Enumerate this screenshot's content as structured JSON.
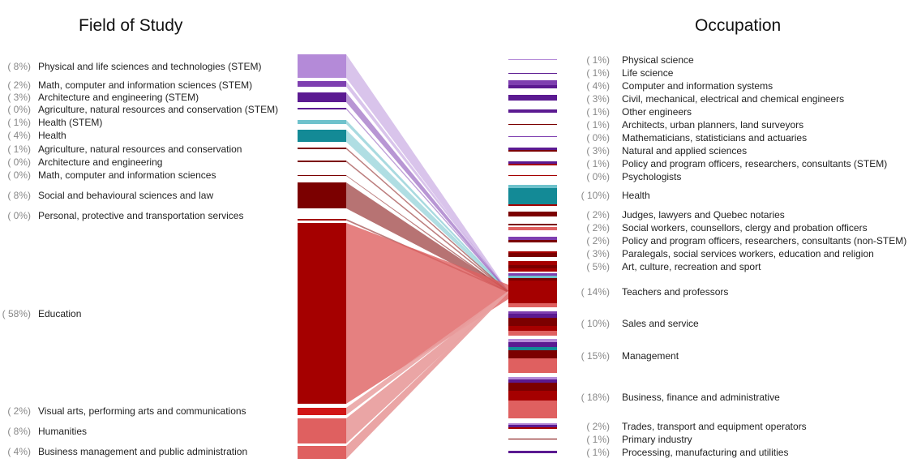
{
  "titles": {
    "left": "Field of Study",
    "right": "Occupation"
  },
  "colors": {
    "stem_purple": "#b48ad8",
    "stem_dark": "#7e3fb0",
    "deep_purple": "#5b1a91",
    "teal": "#138a96",
    "teal_light": "#6fc2cc",
    "dark_red": "#7b0000",
    "red": "#a50000",
    "bright_red": "#d11616",
    "coral": "#df6060",
    "pink_flow": "#e9a0a0"
  },
  "left_items": [
    {
      "pct": "( 8%)",
      "label": "Physical and life sciences and technologies (STEM)"
    },
    {
      "pct": "( 2%)",
      "label": "Math, computer and information sciences (STEM)"
    },
    {
      "pct": "( 3%)",
      "label": "Architecture and engineering (STEM)"
    },
    {
      "pct": "( 0%)",
      "label": "Agriculture, natural resources and conservation (STEM)"
    },
    {
      "pct": "( 1%)",
      "label": "Health (STEM)"
    },
    {
      "pct": "( 4%)",
      "label": "Health"
    },
    {
      "pct": "( 1%)",
      "label": "Agriculture, natural resources and conservation"
    },
    {
      "pct": "( 0%)",
      "label": "Architecture and engineering"
    },
    {
      "pct": "( 0%)",
      "label": "Math, computer and information sciences"
    },
    {
      "pct": "( 8%)",
      "label": "Social and behavioural sciences and law"
    },
    {
      "pct": "( 0%)",
      "label": "Personal, protective and transportation services"
    },
    {
      "pct": "( 58%)",
      "label": "Education"
    },
    {
      "pct": "( 2%)",
      "label": "Visual arts, performing arts and communications"
    },
    {
      "pct": "( 8%)",
      "label": "Humanities"
    },
    {
      "pct": "( 4%)",
      "label": "Business management and public administration"
    }
  ],
  "right_items": [
    {
      "pct": "( 1%)",
      "label": "Physical science"
    },
    {
      "pct": "( 1%)",
      "label": "Life science"
    },
    {
      "pct": "( 4%)",
      "label": "Computer and information systems"
    },
    {
      "pct": "( 3%)",
      "label": "Civil, mechanical, electrical and chemical engineers"
    },
    {
      "pct": "( 1%)",
      "label": "Other engineers"
    },
    {
      "pct": "( 1%)",
      "label": "Architects, urban planners, land surveyors"
    },
    {
      "pct": "( 0%)",
      "label": "Mathematicians, statisticians and actuaries"
    },
    {
      "pct": "( 3%)",
      "label": "Natural and applied sciences"
    },
    {
      "pct": "( 1%)",
      "label": "Policy and program officers, researchers, consultants (STEM)"
    },
    {
      "pct": "( 0%)",
      "label": "Psychologists"
    },
    {
      "pct": "( 10%)",
      "label": "Health"
    },
    {
      "pct": "( 2%)",
      "label": "Judges, lawyers and Quebec notaries"
    },
    {
      "pct": "( 2%)",
      "label": "Social workers, counsellors, clergy and probation officers"
    },
    {
      "pct": "( 2%)",
      "label": "Policy and program officers, researchers, consultants (non-STEM)"
    },
    {
      "pct": "( 3%)",
      "label": "Paralegals, social services workers, education and religion"
    },
    {
      "pct": "( 5%)",
      "label": "Art, culture, recreation and sport"
    },
    {
      "pct": "( 14%)",
      "label": "Teachers and professors"
    },
    {
      "pct": "( 10%)",
      "label": "Sales and service"
    },
    {
      "pct": "( 15%)",
      "label": "Management"
    },
    {
      "pct": "( 18%)",
      "label": "Business, finance and administrative"
    },
    {
      "pct": "( 2%)",
      "label": "Trades, transport and equipment operators"
    },
    {
      "pct": "( 1%)",
      "label": "Primary industry"
    },
    {
      "pct": "( 1%)",
      "label": "Processing, manufacturing and utilities"
    }
  ]
}
